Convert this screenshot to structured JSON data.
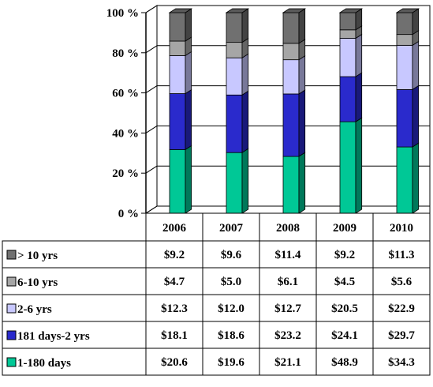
{
  "chart_data": {
    "type": "bar",
    "stacked": true,
    "percent": true,
    "three_d": true,
    "title": "",
    "xlabel": "",
    "ylabel": "",
    "ylim": [
      0,
      100
    ],
    "yticks": [
      "0 %",
      "20 %",
      "40 %",
      "60 %",
      "80 %",
      "100 %"
    ],
    "grid": true,
    "legend": "table-left",
    "categories": [
      "2006",
      "2007",
      "2008",
      "2009",
      "2010"
    ],
    "series": [
      {
        "name": "1-180 days",
        "color": "#00C896",
        "values": [
          "$20.6",
          "$19.6",
          "$21.1",
          "$48.9",
          "$34.3"
        ],
        "numeric": [
          20.6,
          19.6,
          21.1,
          48.9,
          34.3
        ]
      },
      {
        "name": "181 days-2 yrs",
        "color": "#2A2ACC",
        "values": [
          "$18.1",
          "$18.6",
          "$23.2",
          "$24.1",
          "$29.7"
        ],
        "numeric": [
          18.1,
          18.6,
          23.2,
          24.1,
          29.7
        ]
      },
      {
        "name": "2-6 yrs",
        "color": "#C8C8FF",
        "values": [
          "$12.3",
          "$12.0",
          "$12.7",
          "$20.5",
          "$22.9"
        ],
        "numeric": [
          12.3,
          12.0,
          12.7,
          20.5,
          22.9
        ]
      },
      {
        "name": "6-10 yrs",
        "color": "#A6A6A6",
        "values": [
          "$4.7",
          "$5.0",
          "$6.1",
          "$4.5",
          "$5.6"
        ],
        "numeric": [
          4.7,
          5.0,
          6.1,
          4.5,
          5.6
        ]
      },
      {
        "name": "> 10 yrs",
        "color": "#707070",
        "values": [
          "$9.2",
          "$9.6",
          "$11.4",
          "$9.2",
          "$11.3"
        ],
        "numeric": [
          9.2,
          9.6,
          11.4,
          9.2,
          11.3
        ]
      }
    ]
  }
}
